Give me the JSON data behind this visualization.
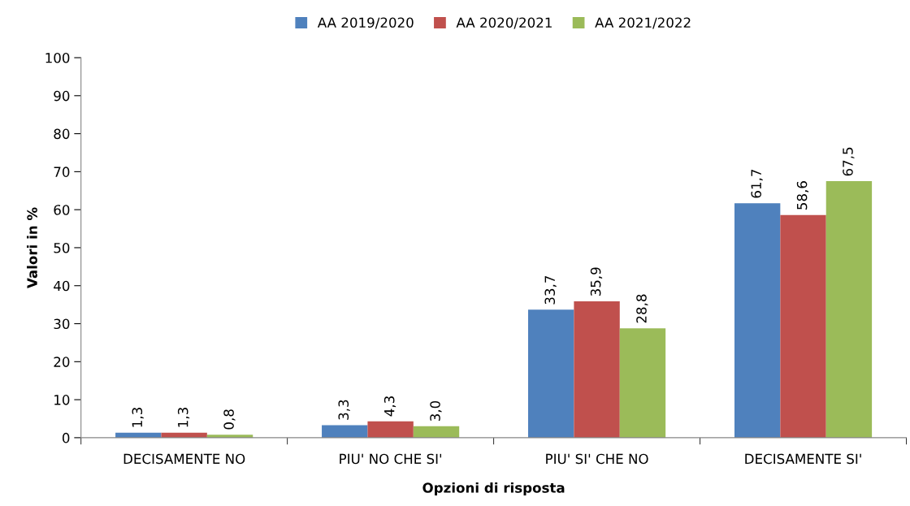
{
  "chart_data": {
    "type": "bar",
    "xlabel": "Opzioni di risposta",
    "ylabel": "Valori in %",
    "categories": [
      "DECISAMENTE NO",
      "PIU' NO CHE SI'",
      "PIU' SI' CHE NO",
      "DECISAMENTE SI'"
    ],
    "series": [
      {
        "name": "AA 2019/2020",
        "color": "#4f81bd",
        "values": [
          1.3,
          3.3,
          33.7,
          61.7
        ],
        "value_labels": [
          "1,3",
          "3,3",
          "33,7",
          "61,7"
        ]
      },
      {
        "name": "AA 2020/2021",
        "color": "#c0504d",
        "values": [
          1.3,
          4.3,
          35.9,
          58.6
        ],
        "value_labels": [
          "1,3",
          "4,3",
          "35,9",
          "58,6"
        ]
      },
      {
        "name": "AA 2021/2022",
        "color": "#9bbb59",
        "values": [
          0.8,
          3.0,
          28.8,
          67.5
        ],
        "value_labels": [
          "0,8",
          "3,0",
          "28,8",
          "67,5"
        ]
      }
    ],
    "ylim": [
      0,
      100
    ],
    "yticks": [
      0,
      10,
      20,
      30,
      40,
      50,
      60,
      70,
      80,
      90,
      100
    ],
    "grid": false,
    "legend": "top"
  }
}
